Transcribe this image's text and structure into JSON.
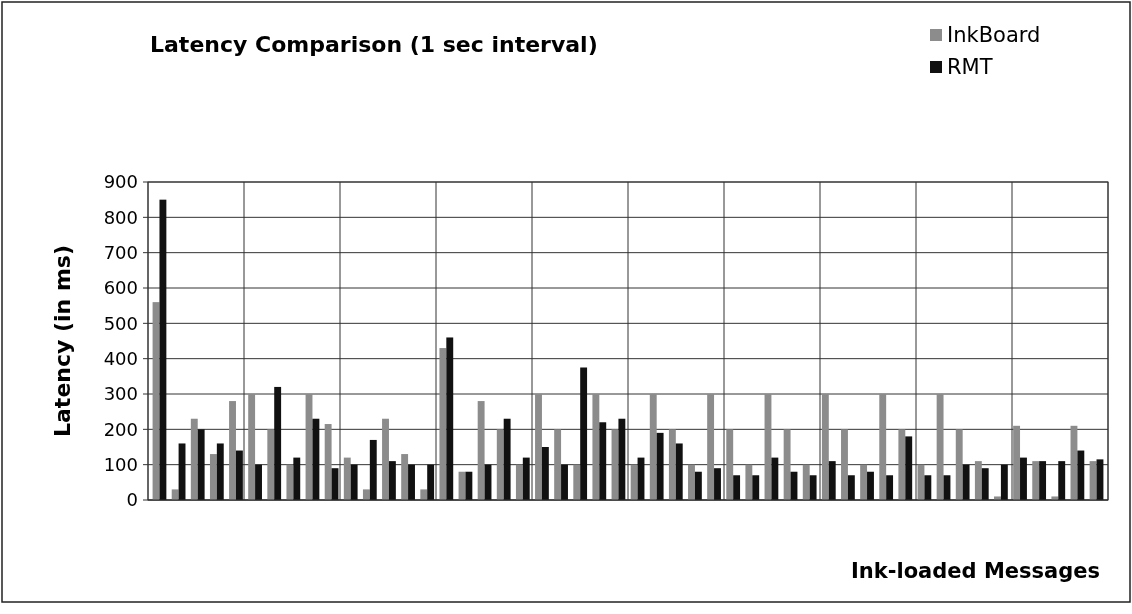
{
  "chart_data": {
    "type": "bar",
    "title": "Latency Comparison (1 sec interval)",
    "xlabel": "Ink-loaded Messages",
    "ylabel": "Latency (in ms)",
    "categories": [
      null,
      null,
      null,
      null,
      null,
      null,
      null,
      null,
      null,
      null,
      null,
      null,
      null,
      null,
      null,
      null,
      null,
      null,
      null,
      null,
      null,
      null,
      null,
      null,
      null,
      null,
      null,
      null,
      null,
      null,
      null,
      null,
      null,
      null,
      null,
      null,
      null,
      null,
      null,
      null,
      null,
      null,
      null,
      null,
      null,
      null,
      null,
      null,
      null,
      null
    ],
    "series": [
      {
        "name": "InkBoard",
        "color": "#8c8c8c",
        "values": [
          560,
          30,
          230,
          130,
          280,
          300,
          200,
          100,
          300,
          215,
          120,
          30,
          230,
          130,
          30,
          430,
          80,
          280,
          200,
          100,
          300,
          200,
          100,
          300,
          200,
          100,
          300,
          200,
          100,
          300,
          200,
          100,
          300,
          200,
          100,
          300,
          200,
          100,
          300,
          200,
          100,
          300,
          200,
          110,
          10,
          210,
          110,
          10,
          210,
          110
        ]
      },
      {
        "name": "RMT",
        "color": "#111111",
        "values": [
          850,
          160,
          200,
          160,
          140,
          100,
          320,
          120,
          230,
          90,
          100,
          170,
          110,
          100,
          100,
          460,
          80,
          100,
          230,
          120,
          150,
          100,
          375,
          220,
          230,
          120,
          190,
          160,
          80,
          90,
          70,
          70,
          120,
          80,
          70,
          110,
          70,
          80,
          70,
          180,
          70,
          70,
          100,
          90,
          100,
          120,
          110,
          110,
          140,
          115
        ]
      }
    ],
    "ylim": [
      0,
      900
    ],
    "yticks": [
      0,
      100,
      200,
      300,
      400,
      500,
      600,
      700,
      800,
      900
    ],
    "grid": true,
    "legend": "top right"
  }
}
